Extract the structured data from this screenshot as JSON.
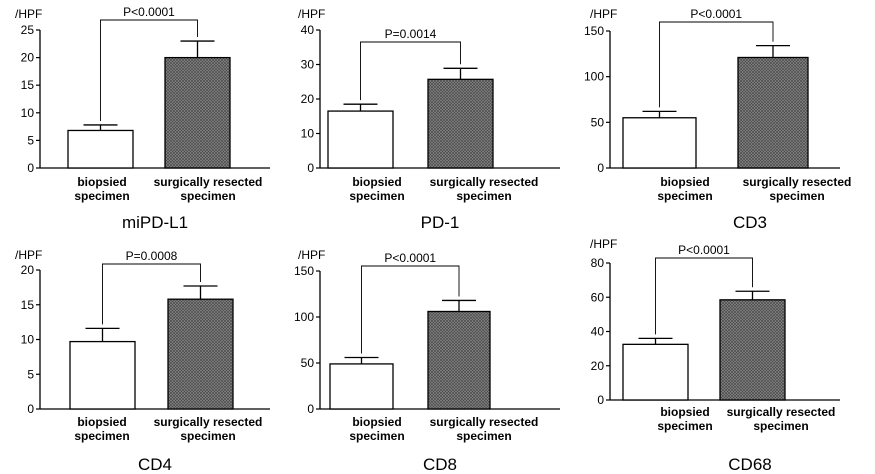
{
  "colors": {
    "axis": "#000000",
    "bar_biopsied": "#ffffff",
    "bar_resected": "#8a8a8a",
    "hatch": "#5a5a5a"
  },
  "chart_data": [
    {
      "type": "bar",
      "title": "miPD-L1",
      "ylabel": "/HPF",
      "ylim": [
        0,
        25
      ],
      "yticks": [
        "0",
        "5",
        "10",
        "15",
        "20",
        "25"
      ],
      "categories": [
        [
          "biopsied",
          "specimen"
        ],
        [
          "surgically resected",
          "specimen"
        ]
      ],
      "values": [
        6.8,
        20.0
      ],
      "errors": [
        1.0,
        3.0
      ],
      "pvalue": "P<0.0001"
    },
    {
      "type": "bar",
      "title": "PD-1",
      "ylabel": "/HPF",
      "ylim": [
        0,
        40
      ],
      "yticks": [
        "0",
        "10",
        "20",
        "30",
        "40"
      ],
      "categories": [
        [
          "biopsied",
          "specimen"
        ],
        [
          "surgically resected",
          "specimen"
        ]
      ],
      "values": [
        16.5,
        25.7
      ],
      "errors": [
        2.0,
        3.2
      ],
      "pvalue": "P=0.0014"
    },
    {
      "type": "bar",
      "title": "CD3",
      "ylabel": "/HPF",
      "ylim": [
        0,
        150
      ],
      "yticks": [
        "0",
        "50",
        "100",
        "150"
      ],
      "categories": [
        [
          "biopsied",
          "specimen"
        ],
        [
          "surgically resected",
          "specimen"
        ]
      ],
      "values": [
        55,
        121
      ],
      "errors": [
        7,
        13
      ],
      "pvalue": "P<0.0001"
    },
    {
      "type": "bar",
      "title": "CD4",
      "ylabel": "/HPF",
      "ylim": [
        0,
        20
      ],
      "yticks": [
        "0",
        "5",
        "10",
        "15",
        "20"
      ],
      "categories": [
        [
          "biopsied",
          "specimen"
        ],
        [
          "surgically resected",
          "specimen"
        ]
      ],
      "values": [
        9.7,
        15.8
      ],
      "errors": [
        1.9,
        1.9
      ],
      "pvalue": "P=0.0008"
    },
    {
      "type": "bar",
      "title": "CD8",
      "ylabel": "/HPF",
      "ylim": [
        0,
        150
      ],
      "yticks": [
        "0",
        "50",
        "100",
        "150"
      ],
      "categories": [
        [
          "biopsied",
          "specimen"
        ],
        [
          "surgically resected",
          "specimen"
        ]
      ],
      "values": [
        49,
        106
      ],
      "errors": [
        7,
        12
      ],
      "pvalue": "P<0.0001"
    },
    {
      "type": "bar",
      "title": "CD68",
      "ylabel": "/HPF",
      "ylim": [
        0,
        80
      ],
      "yticks": [
        "0",
        "20",
        "40",
        "60",
        "80"
      ],
      "categories": [
        [
          "biopsied",
          "specimen"
        ],
        [
          "surgically resected",
          "specimen"
        ]
      ],
      "values": [
        32.5,
        58.5
      ],
      "errors": [
        3.5,
        5.0
      ],
      "pvalue": "P<0.0001"
    }
  ]
}
